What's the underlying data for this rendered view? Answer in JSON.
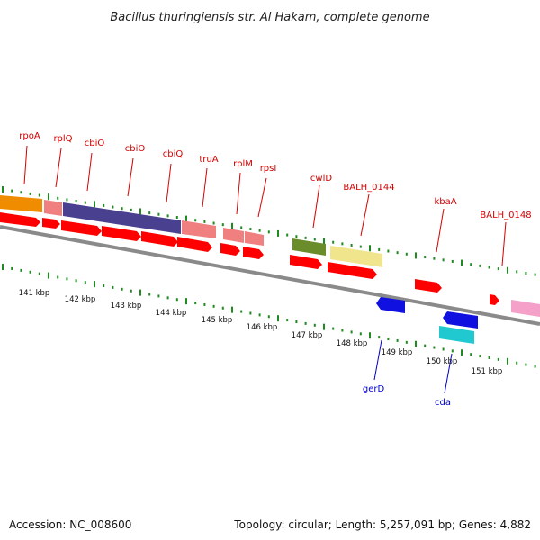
{
  "title": "Bacillus thuringiensis str. Al Hakam, complete genome",
  "footer": {
    "accession": "Accession: NC_008600",
    "topology": "Topology: circular; Length: 5,257,091 bp; Genes: 4,882"
  },
  "scale_labels": [
    "141 kbp",
    "142 kbp",
    "143 kbp",
    "144 kbp",
    "145 kbp",
    "146 kbp",
    "147 kbp",
    "148 kbp",
    "149 kbp",
    "150 kbp",
    "151 kbp"
  ],
  "colors": {
    "backbone": "#8a8a8a",
    "tick": "#1f8a1f",
    "top_label": "#d40000",
    "bottom_label": "#0000cc",
    "gene_arrow": "#ff0000",
    "orange": "#f08c00",
    "light_red": "#f08080",
    "dark_purple": "#4a4090",
    "olive": "#6a8c2a",
    "yellow": "#f0e48c",
    "blue": "#1010e0",
    "cyan": "#20c8d0",
    "pink": "#f4a0c8"
  },
  "top_labels": [
    "rpoA",
    "rplQ",
    "cbiO",
    "cbiO",
    "cbiQ",
    "truA",
    "rplM",
    "rpsI",
    "cwlD",
    "BALH_0144",
    "kbaA",
    "BALH_0148"
  ],
  "bottom_labels": [
    "gerD",
    "cda"
  ]
}
